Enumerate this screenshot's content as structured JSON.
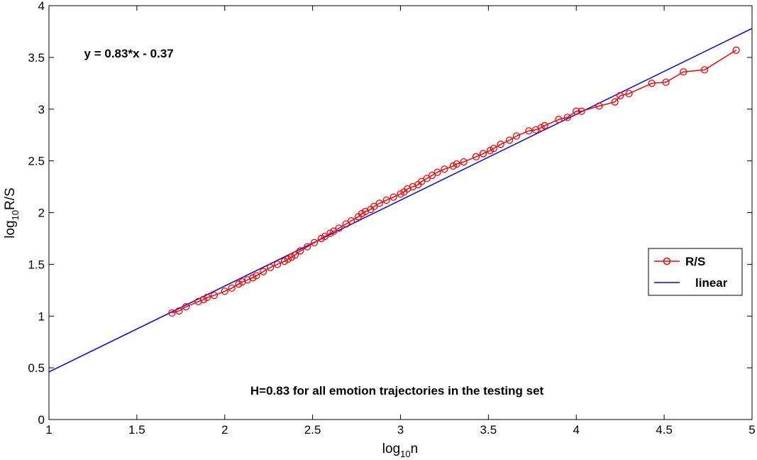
{
  "chart_data": {
    "type": "line",
    "xlabel": {
      "base": "log",
      "sub": "10",
      "rest": "n"
    },
    "ylabel": {
      "base": "log",
      "sub": "10",
      "rest": "R/S"
    },
    "xlim": [
      1,
      5
    ],
    "ylim": [
      0,
      4
    ],
    "xticks": [
      1,
      1.5,
      2,
      2.5,
      3,
      3.5,
      4,
      4.5,
      5
    ],
    "xtick_labels": [
      "1",
      "1.5",
      "2",
      "2.5",
      "3",
      "3.5",
      "4",
      "4.5",
      "5"
    ],
    "yticks": [
      0,
      0.5,
      1,
      1.5,
      2,
      2.5,
      3,
      3.5,
      4
    ],
    "ytick_labels": [
      "0",
      "0.5",
      "1",
      "1.5",
      "2",
      "2.5",
      "3",
      "3.5",
      "4"
    ],
    "grid": false,
    "legend_position": "right",
    "series": [
      {
        "name": "R/S",
        "color": "#ff0000",
        "marker": "circle",
        "x": [
          1.7,
          1.74,
          1.78,
          1.85,
          1.88,
          1.9,
          1.94,
          2.0,
          2.04,
          2.08,
          2.1,
          2.13,
          2.16,
          2.18,
          2.22,
          2.26,
          2.3,
          2.34,
          2.36,
          2.38,
          2.4,
          2.43,
          2.47,
          2.51,
          2.55,
          2.57,
          2.6,
          2.62,
          2.65,
          2.69,
          2.72,
          2.76,
          2.78,
          2.8,
          2.83,
          2.85,
          2.88,
          2.92,
          2.96,
          3.0,
          3.02,
          3.04,
          3.07,
          3.1,
          3.12,
          3.15,
          3.18,
          3.21,
          3.25,
          3.3,
          3.32,
          3.36,
          3.43,
          3.47,
          3.51,
          3.53,
          3.57,
          3.62,
          3.66,
          3.73,
          3.77,
          3.8,
          3.82,
          3.9,
          3.95,
          4.0,
          4.03,
          4.13,
          4.22,
          4.25,
          4.3,
          4.43,
          4.51,
          4.61,
          4.73,
          4.91
        ],
        "y": [
          1.03,
          1.05,
          1.09,
          1.14,
          1.16,
          1.18,
          1.2,
          1.24,
          1.27,
          1.31,
          1.33,
          1.35,
          1.37,
          1.39,
          1.43,
          1.47,
          1.5,
          1.53,
          1.55,
          1.57,
          1.59,
          1.63,
          1.67,
          1.71,
          1.75,
          1.77,
          1.8,
          1.82,
          1.85,
          1.89,
          1.92,
          1.96,
          1.99,
          2.01,
          2.03,
          2.06,
          2.09,
          2.12,
          2.15,
          2.18,
          2.2,
          2.23,
          2.25,
          2.27,
          2.3,
          2.33,
          2.36,
          2.39,
          2.42,
          2.45,
          2.47,
          2.49,
          2.54,
          2.57,
          2.6,
          2.62,
          2.66,
          2.7,
          2.74,
          2.79,
          2.8,
          2.82,
          2.84,
          2.9,
          2.92,
          2.98,
          2.98,
          3.03,
          3.07,
          3.13,
          3.15,
          3.25,
          3.26,
          3.36,
          3.38,
          3.57
        ]
      },
      {
        "name": "linear",
        "color": "#0000ff",
        "marker": "none",
        "x": [
          1,
          5
        ],
        "y": [
          0.46,
          3.78
        ]
      }
    ],
    "annotations": [
      {
        "text": "y = 0.83*x - 0.37",
        "x": 1.2,
        "y": 3.5
      },
      {
        "text": "H=0.83 for all emotion trajectories in the testing set",
        "x": 2.98,
        "y": 0.24
      }
    ]
  }
}
